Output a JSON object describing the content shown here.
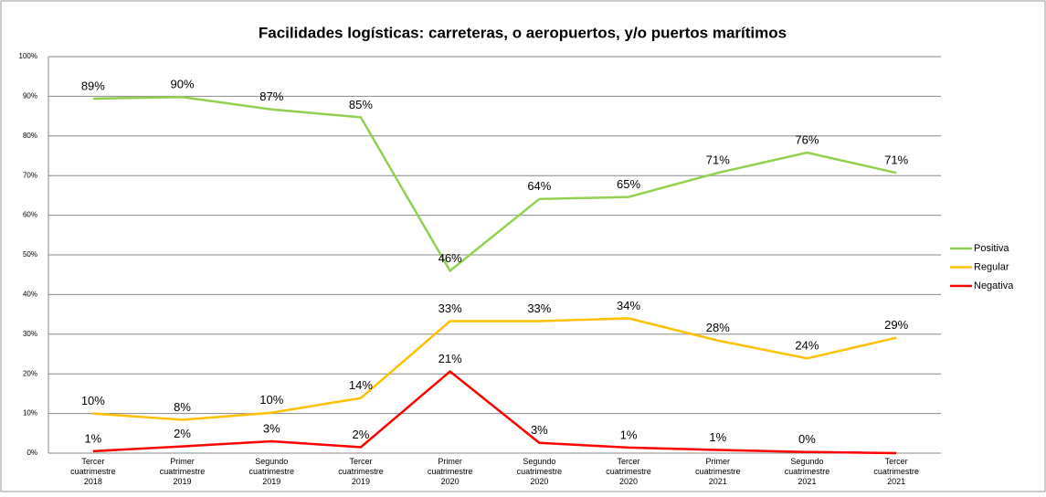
{
  "chart_data": {
    "type": "line",
    "title": "Facilidades logísticas: carreteras, o aeropuertos, y/o puertos marítimos",
    "categories": [
      "Tercer cuatrimestre 2018",
      "Primer cuatrimestre 2019",
      "Segundo cuatrimestre 2019",
      "Tercer cuatrimestre 2019",
      "Primer cuatrimestre 2020",
      "Segundo cuatrimestre 2020",
      "Tercer cuatrimestre 2020",
      "Primer cuatrimestre 2021",
      "Segundo cuatrimestre 2021",
      "Tercer cuatrimestre 2021"
    ],
    "series": [
      {
        "name": "Positiva",
        "color": "#92d050",
        "values": [
          89.4,
          89.8,
          86.7,
          84.7,
          46.0,
          64.1,
          64.6,
          70.7,
          75.8,
          70.7
        ],
        "value_labels": [
          "89%",
          "90%",
          "87%",
          "85%",
          "46%",
          "64%",
          "65%",
          "71%",
          "76%",
          "71%"
        ]
      },
      {
        "name": "Regular",
        "color": "#ffc000",
        "values": [
          10.0,
          8.4,
          10.2,
          13.9,
          33.3,
          33.3,
          34.0,
          28.4,
          23.9,
          29.1
        ],
        "value_labels": [
          "10%",
          "8%",
          "10%",
          "14%",
          "33%",
          "33%",
          "34%",
          "28%",
          "24%",
          "29%"
        ]
      },
      {
        "name": "Negativa",
        "color": "#ff0000",
        "values": [
          0.5,
          1.7,
          3.0,
          1.5,
          20.6,
          2.6,
          1.4,
          0.8,
          0.3,
          0
        ],
        "value_labels": [
          "1%",
          "2%",
          "3%",
          "2%",
          "21%",
          "3%",
          "1%",
          "1%",
          "0%",
          null
        ]
      }
    ],
    "ylim": [
      0,
      100
    ],
    "yticks": [
      {
        "value": 0,
        "label": "0%"
      },
      {
        "value": 10,
        "label": "10%"
      },
      {
        "value": 20,
        "label": "20%"
      },
      {
        "value": 30,
        "label": "30%"
      },
      {
        "value": 40,
        "label": "40%"
      },
      {
        "value": 50,
        "label": "50%"
      },
      {
        "value": 60,
        "label": "60%"
      },
      {
        "value": 70,
        "label": "70%"
      },
      {
        "value": 80,
        "label": "80%"
      },
      {
        "value": 90,
        "label": "90%"
      },
      {
        "value": 100,
        "label": "100%"
      }
    ],
    "grid": true,
    "legend": "right"
  }
}
